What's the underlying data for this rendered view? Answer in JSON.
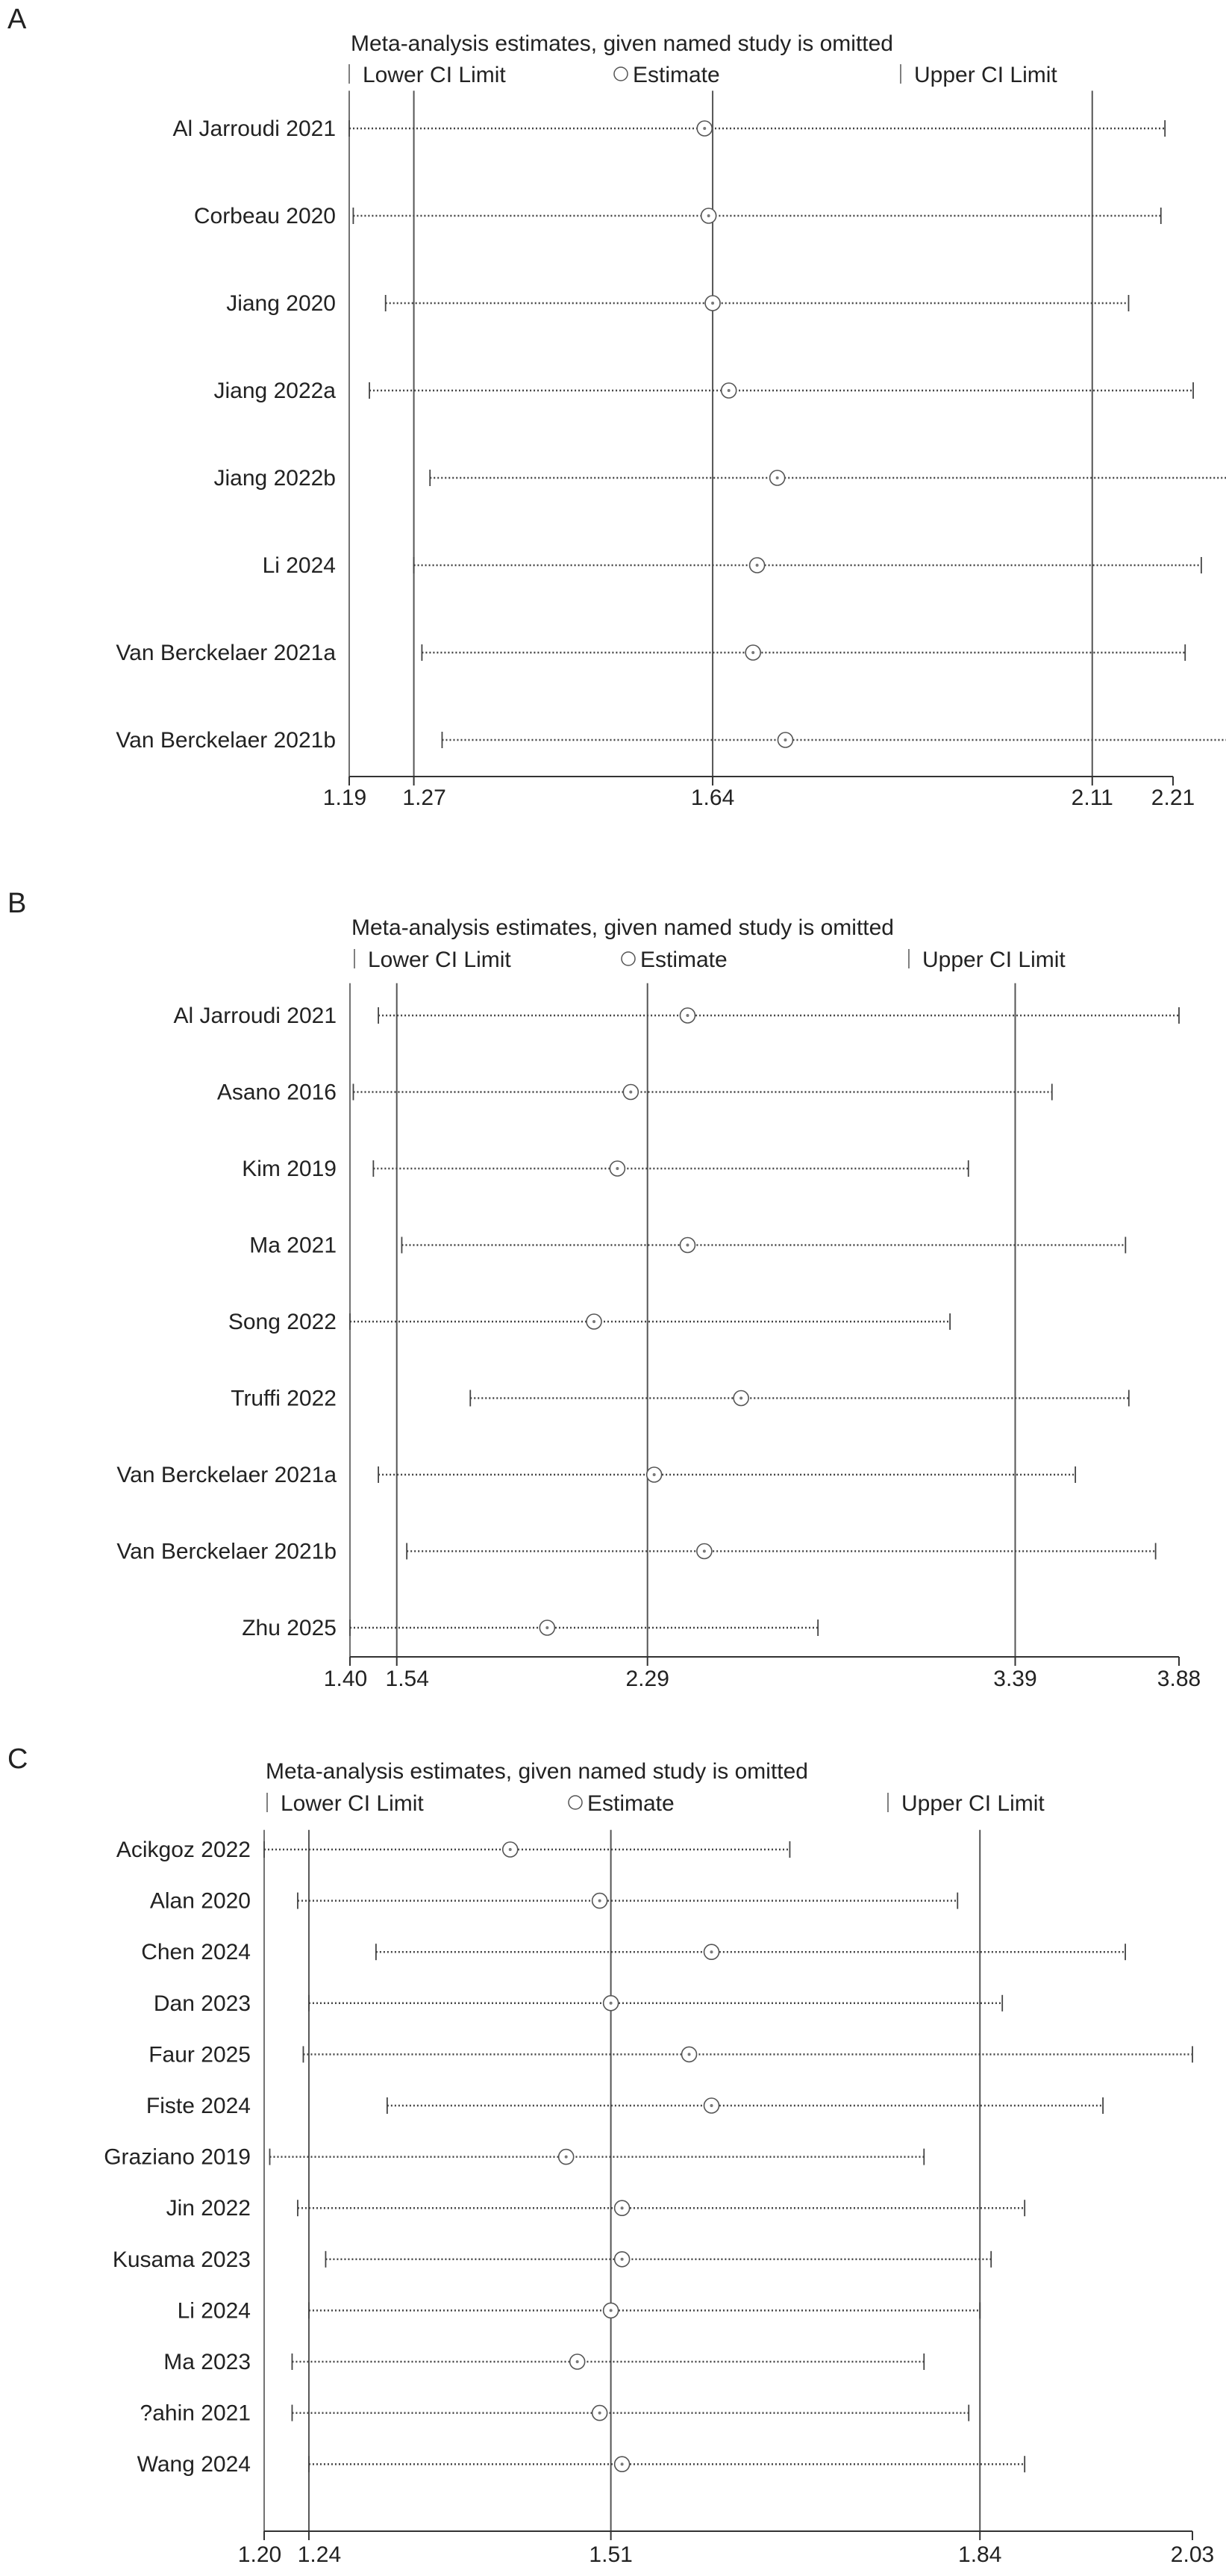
{
  "chart_data": [
    {
      "panel": "A",
      "type": "scatter",
      "title": "Meta-analysis estimates, given named study is omitted",
      "legend": {
        "lower": "Lower CI Limit",
        "estimate": "Estimate",
        "upper": "Upper CI Limit"
      },
      "xlim": [
        1.19,
        2.21
      ],
      "ref_lines": [
        1.27,
        1.64,
        2.11
      ],
      "tick_values": [
        1.19,
        1.27,
        1.64,
        2.11,
        2.21
      ],
      "tick_labels": [
        "1.19",
        "1.27",
        "1.64",
        "2.11",
        "2.21"
      ],
      "studies": [
        {
          "name": "Al Jarroudi 2021",
          "lower": 1.19,
          "estimate": 1.63,
          "upper": 2.2
        },
        {
          "name": "Corbeau 2020",
          "lower": 1.195,
          "estimate": 1.635,
          "upper": 2.195
        },
        {
          "name": "Jiang 2020",
          "lower": 1.235,
          "estimate": 1.64,
          "upper": 2.155
        },
        {
          "name": "Jiang 2022a",
          "lower": 1.215,
          "estimate": 1.66,
          "upper": 2.235
        },
        {
          "name": "Jiang 2022b",
          "lower": 1.29,
          "estimate": 1.72,
          "upper": 2.285
        },
        {
          "name": "Li 2024",
          "lower": 1.27,
          "estimate": 1.695,
          "upper": 2.245
        },
        {
          "name": "Van Berckelaer 2021a",
          "lower": 1.28,
          "estimate": 1.69,
          "upper": 2.225
        },
        {
          "name": "Van Berckelaer 2021b",
          "lower": 1.305,
          "estimate": 1.73,
          "upper": 2.285
        }
      ]
    },
    {
      "panel": "B",
      "type": "scatter",
      "title": "Meta-analysis estimates, given named study is omitted",
      "legend": {
        "lower": "Lower CI Limit",
        "estimate": "Estimate",
        "upper": "Upper CI Limit"
      },
      "xlim": [
        1.4,
        3.88
      ],
      "ref_lines": [
        1.54,
        2.29,
        3.39
      ],
      "tick_values": [
        1.4,
        1.54,
        2.29,
        3.39,
        3.88
      ],
      "tick_labels": [
        "1.40",
        "1.54",
        "2.29",
        "3.39",
        "3.88"
      ],
      "studies": [
        {
          "name": "Al Jarroudi 2021",
          "lower": 1.485,
          "estimate": 2.41,
          "upper": 3.88
        },
        {
          "name": "Asano 2016",
          "lower": 1.41,
          "estimate": 2.24,
          "upper": 3.5
        },
        {
          "name": "Kim 2019",
          "lower": 1.47,
          "estimate": 2.2,
          "upper": 3.25
        },
        {
          "name": "Ma 2021",
          "lower": 1.555,
          "estimate": 2.41,
          "upper": 3.72
        },
        {
          "name": "Song 2022",
          "lower": 1.4,
          "estimate": 2.13,
          "upper": 3.195
        },
        {
          "name": "Truffi 2022",
          "lower": 1.76,
          "estimate": 2.57,
          "upper": 3.73
        },
        {
          "name": "Van Berckelaer 2021a",
          "lower": 1.485,
          "estimate": 2.31,
          "upper": 3.57
        },
        {
          "name": "Van Berckelaer 2021b",
          "lower": 1.57,
          "estimate": 2.46,
          "upper": 3.81
        },
        {
          "name": "Zhu 2025",
          "lower": 1.4,
          "estimate": 1.99,
          "upper": 2.8
        }
      ]
    },
    {
      "panel": "C",
      "type": "scatter",
      "title": "Meta-analysis estimates, given named study is omitted",
      "legend": {
        "lower": "Lower CI Limit",
        "estimate": "Estimate",
        "upper": "Upper CI Limit"
      },
      "xlim": [
        1.2,
        2.03
      ],
      "ref_lines": [
        1.24,
        1.51,
        1.84
      ],
      "tick_values": [
        1.2,
        1.24,
        1.51,
        1.84,
        2.03
      ],
      "tick_labels": [
        "1.20",
        "1.24",
        "1.51",
        "1.84",
        "2.03"
      ],
      "studies": [
        {
          "name": "Acikgoz 2022",
          "lower": 1.2,
          "estimate": 1.42,
          "upper": 1.67
        },
        {
          "name": "Alan 2020",
          "lower": 1.23,
          "estimate": 1.5,
          "upper": 1.82
        },
        {
          "name": "Chen 2024",
          "lower": 1.3,
          "estimate": 1.6,
          "upper": 1.97
        },
        {
          "name": "Dan 2023",
          "lower": 1.24,
          "estimate": 1.51,
          "upper": 1.86
        },
        {
          "name": "Faur 2025",
          "lower": 1.235,
          "estimate": 1.58,
          "upper": 2.03
        },
        {
          "name": "Fiste 2024",
          "lower": 1.31,
          "estimate": 1.6,
          "upper": 1.95
        },
        {
          "name": "Graziano 2019",
          "lower": 1.205,
          "estimate": 1.47,
          "upper": 1.79
        },
        {
          "name": "Jin 2022",
          "lower": 1.23,
          "estimate": 1.52,
          "upper": 1.88
        },
        {
          "name": "Kusama 2023",
          "lower": 1.255,
          "estimate": 1.52,
          "upper": 1.85
        },
        {
          "name": "Li 2024",
          "lower": 1.24,
          "estimate": 1.51,
          "upper": 1.84
        },
        {
          "name": "Ma 2023",
          "lower": 1.225,
          "estimate": 1.48,
          "upper": 1.79
        },
        {
          "name": "?ahin 2021",
          "lower": 1.225,
          "estimate": 1.5,
          "upper": 1.83
        },
        {
          "name": "Wang 2024",
          "lower": 1.24,
          "estimate": 1.52,
          "upper": 1.88
        }
      ]
    }
  ]
}
